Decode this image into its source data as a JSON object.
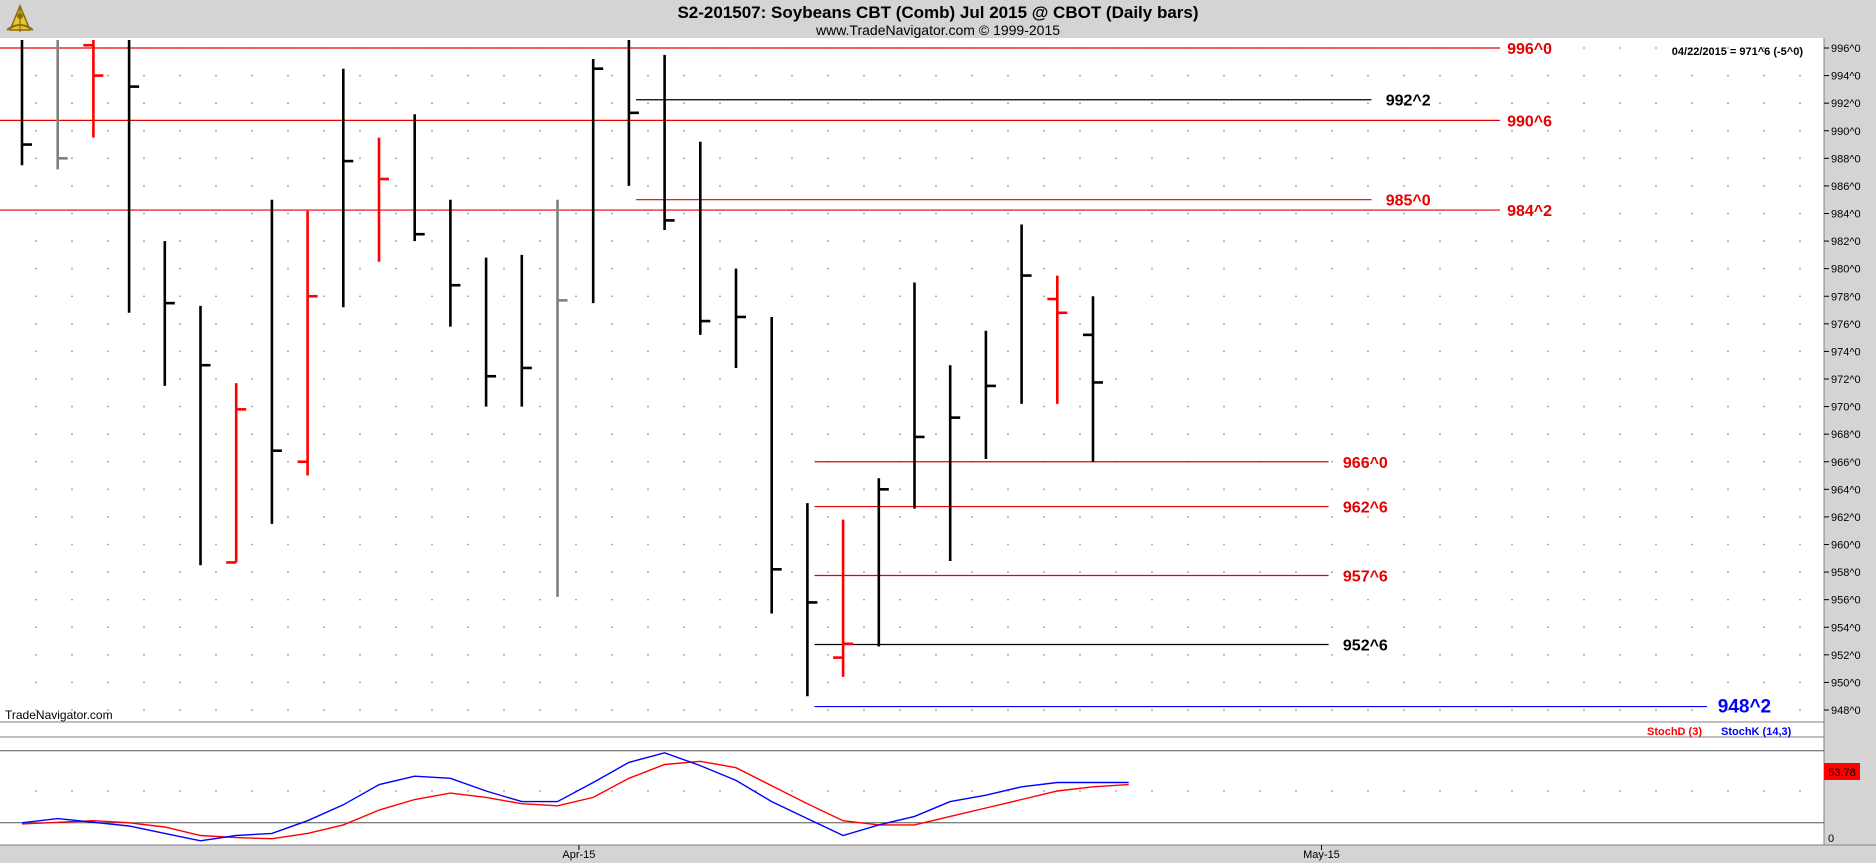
{
  "header": {
    "title": "S2-201507:  Soybeans CBT (Comb) Jul 2015 @ CBOT  (Daily bars)",
    "subtitle": "www.TradeNavigator.com © 1999-2015",
    "last_info": "04/22/2015 = 971^6 (-5^0)",
    "watermark": "TradeNavigator.com",
    "logo": "sextant-logo-icon"
  },
  "colors": {
    "up": "#000000",
    "down": "#ff0000",
    "neutral": "#808080",
    "level_red": "#e60000",
    "level_black": "#000000",
    "level_blue": "#0000ff",
    "stochD": "#ff0000",
    "stochK": "#0000ff",
    "panel_bg": "#d4d4d4"
  },
  "chart_data": [
    {
      "type": "ohlc",
      "title": "S2-201507:  Soybeans CBT (Comb) Jul 2015 @ CBOT  (Daily bars)",
      "ylim": [
        947,
        997.5
      ],
      "y_ticks": [
        "948^0",
        "950^0",
        "952^0",
        "954^0",
        "956^0",
        "958^0",
        "960^0",
        "962^0",
        "964^0",
        "966^0",
        "968^0",
        "970^0",
        "972^0",
        "974^0",
        "976^0",
        "978^0",
        "980^0",
        "982^0",
        "984^0",
        "986^0",
        "988^0",
        "990^0",
        "992^0",
        "994^0",
        "996^0"
      ],
      "x_ticks": [
        {
          "label": "Apr-15",
          "index": 15.6
        },
        {
          "label": "May-15",
          "index": 36.4
        }
      ],
      "bars": [
        {
          "o": null,
          "h": 997.5,
          "l": 987.5,
          "c": 989.0,
          "color": "up"
        },
        {
          "o": null,
          "h": 997.5,
          "l": 987.2,
          "c": 988.0,
          "color": "neutral"
        },
        {
          "o": 996.2,
          "h": 997.5,
          "l": 989.5,
          "c": 994.0,
          "color": "down"
        },
        {
          "o": null,
          "h": 997.5,
          "l": 976.8,
          "c": 993.2,
          "color": "up"
        },
        {
          "o": null,
          "h": 982.0,
          "l": 971.5,
          "c": 977.5,
          "color": "up"
        },
        {
          "o": null,
          "h": 977.3,
          "l": 958.5,
          "c": 973.0,
          "color": "up"
        },
        {
          "o": 958.7,
          "h": 971.7,
          "l": 958.7,
          "c": 969.8,
          "color": "down"
        },
        {
          "o": null,
          "h": 985.0,
          "l": 961.5,
          "c": 966.8,
          "color": "up"
        },
        {
          "o": 966.0,
          "h": 984.2,
          "l": 965.0,
          "c": 978.0,
          "color": "down"
        },
        {
          "o": null,
          "h": 994.5,
          "l": 977.2,
          "c": 987.8,
          "color": "up"
        },
        {
          "o": null,
          "h": 989.5,
          "l": 980.5,
          "c": 986.5,
          "color": "down"
        },
        {
          "o": null,
          "h": 991.2,
          "l": 982.0,
          "c": 982.5,
          "color": "up"
        },
        {
          "o": null,
          "h": 985.0,
          "l": 975.8,
          "c": 978.8,
          "color": "up"
        },
        {
          "o": null,
          "h": 980.8,
          "l": 970.0,
          "c": 972.2,
          "color": "up"
        },
        {
          "o": null,
          "h": 981.0,
          "l": 970.0,
          "c": 972.8,
          "color": "up"
        },
        {
          "o": null,
          "h": 985.0,
          "l": 956.2,
          "c": 977.7,
          "color": "neutral"
        },
        {
          "o": null,
          "h": 995.2,
          "l": 977.5,
          "c": 994.5,
          "color": "up"
        },
        {
          "o": null,
          "h": 997.5,
          "l": 986.0,
          "c": 991.3,
          "color": "up"
        },
        {
          "o": null,
          "h": 995.5,
          "l": 982.8,
          "c": 983.5,
          "color": "up"
        },
        {
          "o": null,
          "h": 989.2,
          "l": 975.2,
          "c": 976.2,
          "color": "up"
        },
        {
          "o": null,
          "h": 980.0,
          "l": 972.8,
          "c": 976.5,
          "color": "up"
        },
        {
          "o": null,
          "h": 976.5,
          "l": 955.0,
          "c": 958.2,
          "color": "up"
        },
        {
          "o": null,
          "h": 963.0,
          "l": 949.0,
          "c": 955.8,
          "color": "up"
        },
        {
          "o": 951.8,
          "h": 961.8,
          "l": 950.4,
          "c": 952.8,
          "color": "down"
        },
        {
          "o": null,
          "h": 964.8,
          "l": 952.6,
          "c": 964.0,
          "color": "up"
        },
        {
          "o": null,
          "h": 979.0,
          "l": 962.6,
          "c": 967.8,
          "color": "up"
        },
        {
          "o": null,
          "h": 973.0,
          "l": 958.8,
          "c": 969.2,
          "color": "up"
        },
        {
          "o": null,
          "h": 975.5,
          "l": 966.2,
          "c": 971.5,
          "color": "up"
        },
        {
          "o": null,
          "h": 983.2,
          "l": 970.2,
          "c": 979.5,
          "color": "up"
        },
        {
          "o": 977.8,
          "h": 979.5,
          "l": 970.2,
          "c": 976.8,
          "color": "down"
        },
        {
          "o": 975.2,
          "h": 978.0,
          "l": 966.0,
          "c": 971.75,
          "color": "up"
        }
      ],
      "levels": [
        {
          "label": "996^0",
          "value": 996.0,
          "color": "level_red",
          "x_from": 0,
          "x_to": 41.4,
          "label_at": 41.6
        },
        {
          "label": "990^6",
          "value": 990.75,
          "color": "level_red",
          "x_from": 0,
          "x_to": 41.4,
          "label_at": 41.6
        },
        {
          "label": "984^2",
          "value": 984.25,
          "color": "level_red",
          "x_from": 0,
          "x_to": 41.4,
          "label_at": 41.6
        },
        {
          "label": "992^2",
          "value": 992.25,
          "color": "level_black",
          "x_from": 17.2,
          "x_to": 37.8,
          "label_at": 38.2
        },
        {
          "label": "985^0",
          "value": 985.0,
          "color": "level_red",
          "x_from": 17.2,
          "x_to": 37.8,
          "label_at": 38.2
        },
        {
          "label": "966^0",
          "value": 966.0,
          "color": "level_red",
          "x_from": 22.2,
          "x_to": 36.6,
          "label_at": 37.0
        },
        {
          "label": "962^6",
          "value": 962.75,
          "color": "level_red",
          "x_from": 22.2,
          "x_to": 36.6,
          "label_at": 37.0
        },
        {
          "label": "957^6",
          "value": 957.75,
          "color": "level_red",
          "x_from": 22.2,
          "x_to": 36.6,
          "label_at": 37.0
        },
        {
          "label": "952^6",
          "value": 952.75,
          "color": "level_black",
          "x_from": 22.2,
          "x_to": 36.6,
          "label_at": 37.0
        },
        {
          "label": "948^2",
          "value": 948.25,
          "color": "level_blue",
          "x_from": 22.2,
          "x_to": 47.2,
          "label_at": 47.5
        }
      ]
    },
    {
      "type": "line",
      "title": "Stochastic",
      "ylim": [
        0,
        100
      ],
      "y_ticks": [
        "0"
      ],
      "reference_line": 20,
      "last_value_badge": "53.78",
      "legend": [
        {
          "name": "StochD (3)",
          "color": "stochD"
        },
        {
          "name": "StochK (14,3)",
          "color": "stochK"
        }
      ],
      "series": [
        {
          "name": "StochD (3)",
          "x": [
            0,
            2,
            3,
            4,
            5,
            6,
            7,
            8,
            9,
            10,
            11,
            12,
            13,
            14,
            15,
            16,
            17,
            18,
            19,
            20,
            21,
            22,
            23,
            24,
            25,
            26,
            27,
            28,
            29,
            30,
            31
          ],
          "values": [
            19,
            22,
            20,
            16,
            8,
            6,
            5,
            10,
            18,
            32,
            42,
            48,
            44,
            38,
            36,
            44,
            62,
            75,
            78,
            72,
            55,
            38,
            22,
            18,
            18,
            26,
            34,
            42,
            50,
            54,
            56
          ]
        },
        {
          "name": "StochK (14,3)",
          "x": [
            0,
            1,
            3,
            4,
            5,
            6,
            7,
            8,
            9,
            10,
            11,
            12,
            13,
            14,
            15,
            16,
            17,
            18,
            19,
            20,
            21,
            22,
            23,
            24,
            25,
            26,
            27,
            28,
            29,
            30,
            31
          ],
          "values": [
            20,
            24,
            17,
            10,
            3,
            8,
            10,
            22,
            37,
            56,
            64,
            62,
            50,
            40,
            40,
            58,
            77,
            86,
            74,
            60,
            40,
            24,
            8,
            18,
            26,
            40,
            46,
            54,
            58,
            58,
            58
          ]
        }
      ]
    }
  ]
}
